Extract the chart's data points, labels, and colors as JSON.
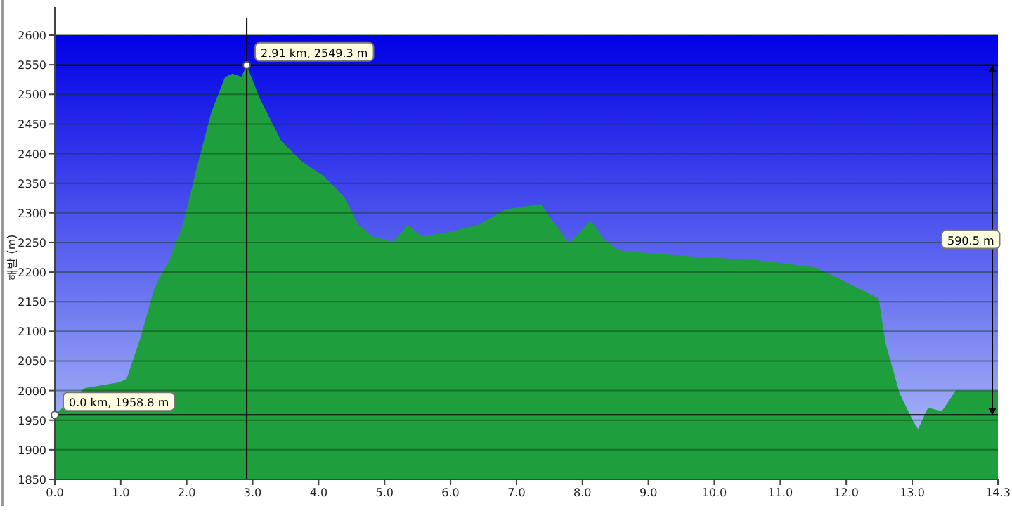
{
  "chart_data": {
    "type": "area",
    "ylabel": "해발 (m)",
    "color": "#1e9e3c",
    "grid": "y",
    "x": [
      0.0,
      0.45,
      0.98,
      1.09,
      1.3,
      1.51,
      1.73,
      1.94,
      2.15,
      2.37,
      2.58,
      2.69,
      2.83,
      2.91,
      3.11,
      3.43,
      3.75,
      4.07,
      4.39,
      4.6,
      4.82,
      5.14,
      5.35,
      5.56,
      5.99,
      6.42,
      6.84,
      7.37,
      7.59,
      7.8,
      8.12,
      8.33,
      8.55,
      8.97,
      9.83,
      10.68,
      11.53,
      11.96,
      12.49,
      12.6,
      12.81,
      13.02,
      13.09,
      13.24,
      13.45,
      13.66,
      14.3
    ],
    "values": [
      1958.8,
      2004,
      2014,
      2020,
      2090,
      2173,
      2220,
      2280,
      2375,
      2469,
      2529,
      2535,
      2530,
      2549.3,
      2493,
      2422,
      2386,
      2363,
      2327,
      2280,
      2260,
      2251,
      2280,
      2260,
      2268,
      2280,
      2306,
      2315,
      2280,
      2249,
      2287,
      2256,
      2237,
      2232,
      2225,
      2220,
      2208,
      2185,
      2156,
      2078,
      1995,
      1947,
      1935,
      1971,
      1965,
      2000,
      2000
    ],
    "xlim": [
      0,
      14.3
    ],
    "ylim": [
      1850,
      2600
    ],
    "xticks": [
      {
        "value": 0,
        "label": "0.0"
      },
      {
        "value": 1,
        "label": "1.0"
      },
      {
        "value": 2,
        "label": "2.0"
      },
      {
        "value": 3,
        "label": "3.0"
      },
      {
        "value": 4,
        "label": "4.0"
      },
      {
        "value": 5,
        "label": "5.0"
      },
      {
        "value": 6,
        "label": "6.0"
      },
      {
        "value": 7,
        "label": "7.0"
      },
      {
        "value": 8,
        "label": "8.0"
      },
      {
        "value": 9,
        "label": "9.0"
      },
      {
        "value": 10,
        "label": "10.0"
      },
      {
        "value": 11,
        "label": "11.0"
      },
      {
        "value": 12,
        "label": "12.0"
      },
      {
        "value": 13,
        "label": "13.0"
      },
      {
        "value": 14.3,
        "label": "14.3"
      }
    ],
    "yticks": [
      1850,
      1900,
      1950,
      2000,
      2050,
      2100,
      2150,
      2200,
      2250,
      2300,
      2350,
      2400,
      2450,
      2500,
      2550,
      2600
    ],
    "ref_lines": [
      {
        "axis": "y",
        "value": 2549.3,
        "color": "#000000"
      },
      {
        "axis": "y",
        "value": 1958.8,
        "color": "#000000"
      },
      {
        "axis": "x",
        "value": 2.91,
        "color": "#000000"
      }
    ],
    "annotations": [
      {
        "text": "2.91 km, 2549.3 m",
        "x": 2.91,
        "y": 2549.3
      },
      {
        "text": "0.0 km, 1958.8 m",
        "x": 0.0,
        "y": 1958.8
      },
      "590.5 m"
    ]
  }
}
